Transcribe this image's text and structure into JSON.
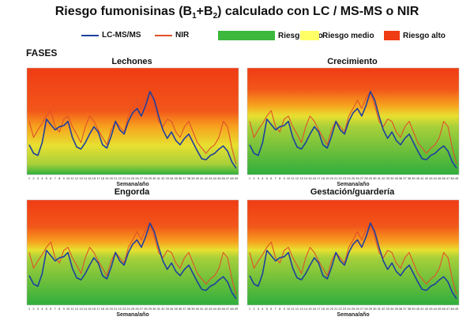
{
  "title": "Riesgo fumonisinas (B1+B2) calculado con LC / MS-MS o NIR",
  "title_prefix": "Riesgo fumonisinas (B",
  "title_sub1": "1",
  "title_plus": "+B",
  "title_sub2": "2",
  "title_suffix": ") calculado con LC / MS-MS o NIR",
  "section_label": "FASES",
  "legend": {
    "lcms": "LC-MS/MS",
    "nir": "NIR",
    "bajo": "Riesgo bajo",
    "medio": "Riesgo medio",
    "alto": "Riesgo alto"
  },
  "colors": {
    "lcms": "#1f3f9f",
    "nir": "#e0502a",
    "bajo": "#3cb83c",
    "medio": "#ffff66",
    "alto": "#f03c14"
  },
  "chart_data": {
    "type": "line",
    "xlabel": "Semana/año",
    "weeks": [
      1,
      2,
      3,
      4,
      5,
      6,
      7,
      8,
      9,
      10,
      11,
      12,
      13,
      14,
      15,
      16,
      17,
      18,
      19,
      20,
      21,
      22,
      23,
      24,
      25,
      26,
      27,
      28,
      29,
      30,
      31,
      32,
      33,
      34,
      35,
      36,
      37,
      38,
      39,
      40,
      41,
      42,
      43,
      44,
      45,
      46,
      47,
      48,
      49
    ],
    "series": [
      {
        "name": "LC-MS/MS",
        "values": [
          0.28,
          0.2,
          0.18,
          0.3,
          0.52,
          0.47,
          0.42,
          0.45,
          0.46,
          0.5,
          0.35,
          0.26,
          0.24,
          0.3,
          0.38,
          0.45,
          0.4,
          0.28,
          0.25,
          0.36,
          0.5,
          0.42,
          0.38,
          0.5,
          0.58,
          0.62,
          0.55,
          0.65,
          0.78,
          0.7,
          0.55,
          0.42,
          0.34,
          0.4,
          0.32,
          0.28,
          0.34,
          0.38,
          0.3,
          0.22,
          0.15,
          0.14,
          0.18,
          0.2,
          0.24,
          0.27,
          0.22,
          0.12,
          0.06
        ]
      },
      {
        "name": "NIR",
        "values": [
          0.5,
          0.35,
          0.42,
          0.48,
          0.55,
          0.6,
          0.45,
          0.4,
          0.52,
          0.55,
          0.45,
          0.38,
          0.3,
          0.45,
          0.55,
          0.5,
          0.42,
          0.35,
          0.28,
          0.42,
          0.5,
          0.45,
          0.4,
          0.55,
          0.62,
          0.7,
          0.62,
          0.72,
          0.78,
          0.65,
          0.5,
          0.45,
          0.52,
          0.5,
          0.4,
          0.35,
          0.45,
          0.5,
          0.4,
          0.3,
          0.25,
          0.2,
          0.25,
          0.28,
          0.35,
          0.5,
          0.45,
          0.25,
          0.1
        ]
      }
    ],
    "panels": [
      {
        "title": "Lechones",
        "zones": {
          "green_top": 0.1,
          "yellow_top": 0.45
        }
      },
      {
        "title": "Crecimiento",
        "zones": {
          "green_top": 0.45,
          "yellow_top": 0.65
        }
      },
      {
        "title": "Engorda",
        "zones": {
          "green_top": 0.45,
          "yellow_top": 0.6
        }
      },
      {
        "title": "Gestación/guardería",
        "zones": {
          "green_top": 0.45,
          "yellow_top": 0.6
        }
      }
    ],
    "ylim": [
      0,
      1
    ],
    "grid": false
  }
}
